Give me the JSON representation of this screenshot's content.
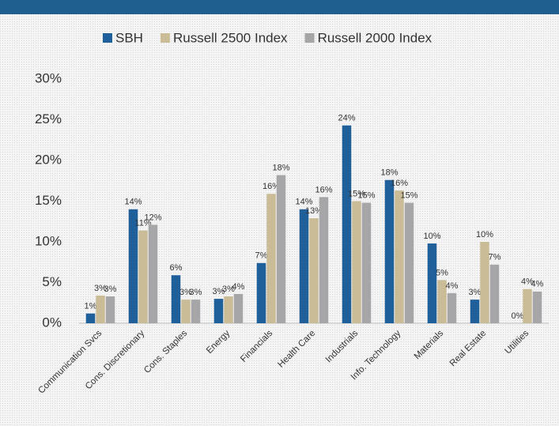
{
  "chart_data": {
    "type": "bar",
    "categories": [
      "Communication Svcs",
      "Cons. Discretionary",
      "Cons. Staples",
      "Energy",
      "Financials",
      "Health Care",
      "Industrials",
      "Info. Technology",
      "Materials",
      "Real Estate",
      "Utilities"
    ],
    "series": [
      {
        "name": "SBH",
        "color": "#1f5f9a",
        "values": [
          1.2,
          14.0,
          5.9,
          3.0,
          7.4,
          14.0,
          24.3,
          17.6,
          9.8,
          2.9,
          0
        ],
        "value_labels": [
          "1%",
          "14%",
          "6%",
          "3%",
          "7%",
          "14%",
          "24%",
          "18%",
          "10%",
          "3%",
          "0%"
        ]
      },
      {
        "name": "Russell 2500 Index",
        "color": "#c9bc96",
        "values": [
          3.4,
          11.4,
          2.9,
          3.3,
          15.9,
          12.9,
          15.0,
          16.3,
          5.3,
          10.0,
          4.2
        ],
        "value_labels": [
          "3%",
          "11%",
          "3%",
          "3%",
          "16%",
          "13%",
          "15%",
          "16%",
          "5%",
          "10%",
          "4%"
        ]
      },
      {
        "name": "Russell 2000 Index",
        "color": "#a6a6a8",
        "values": [
          3.3,
          12.1,
          2.9,
          3.6,
          18.2,
          15.5,
          14.8,
          14.8,
          3.7,
          7.2,
          3.9
        ],
        "value_labels": [
          "3%",
          "12%",
          "3%",
          "4%",
          "18%",
          "16%",
          "15%",
          "15%",
          "4%",
          "7%",
          "4%"
        ]
      }
    ],
    "ylim": [
      0,
      30
    ],
    "yticks": [
      {
        "value": 0,
        "label": "0%"
      },
      {
        "value": 5,
        "label": "5%"
      },
      {
        "value": 10,
        "label": "10%"
      },
      {
        "value": 15,
        "label": "15%"
      },
      {
        "value": 20,
        "label": "20%"
      },
      {
        "value": 25,
        "label": "25%"
      },
      {
        "value": 30,
        "label": "30%"
      }
    ]
  }
}
